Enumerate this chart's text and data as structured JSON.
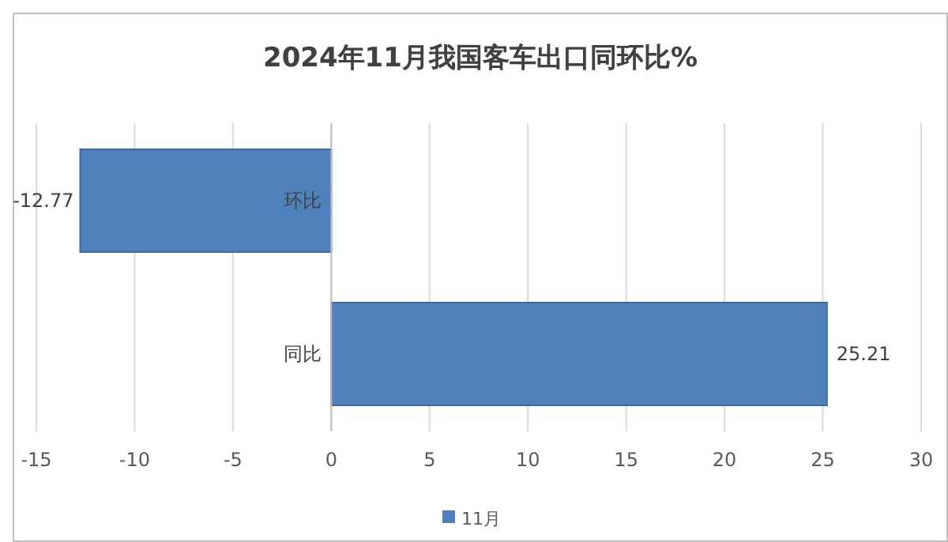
{
  "chart_data": {
    "type": "bar",
    "orientation": "horizontal",
    "title": "2024年11月我国客车出口同环比%",
    "categories": [
      "环比",
      "同比"
    ],
    "series": [
      {
        "name": "11月",
        "color": "#4f81bd",
        "values": [
          -12.77,
          25.21
        ]
      }
    ],
    "xlim": [
      -15,
      30
    ],
    "xticks": [
      -15,
      -10,
      -5,
      0,
      5,
      10,
      15,
      20,
      25,
      30
    ],
    "grid": "x",
    "legend": "bottom",
    "data_labels": true
  }
}
